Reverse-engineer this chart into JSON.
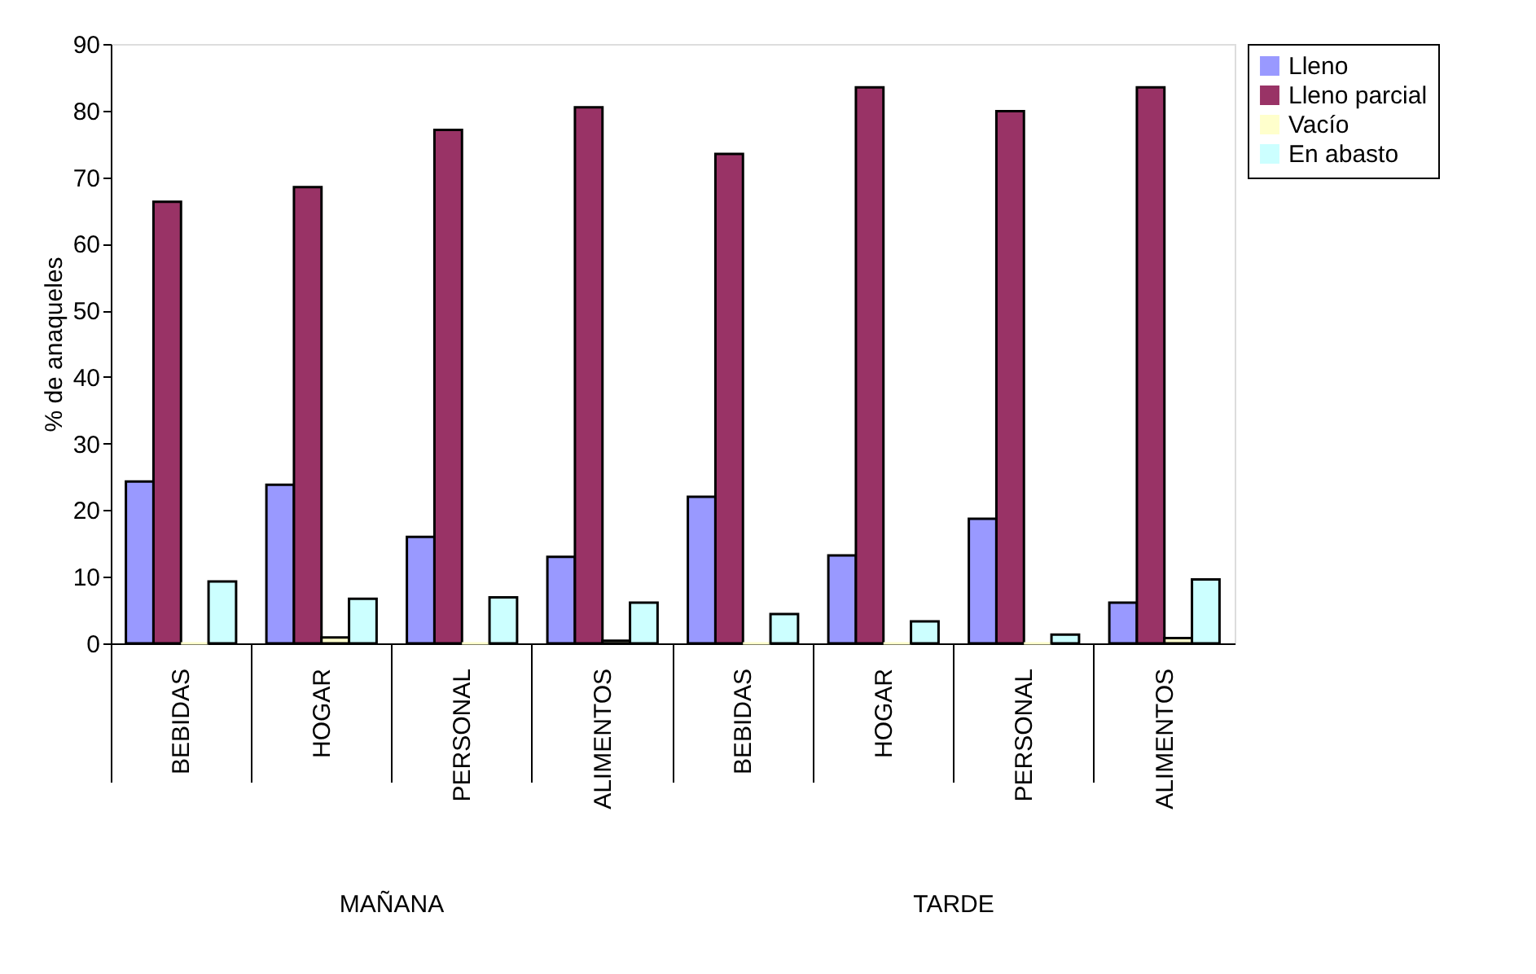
{
  "chart_data": {
    "type": "bar",
    "ylabel": "% de anaqueles",
    "categories": [
      "BEBIDAS",
      "HOGAR",
      "PERSONAL",
      "ALIMENTOS",
      "BEBIDAS",
      "HOGAR",
      "PERSONAL",
      "ALIMENTOS"
    ],
    "series": [
      {
        "name": "Lleno",
        "color": "#9999ff",
        "values": [
          24.3,
          23.8,
          16,
          13,
          22,
          13.2,
          18.7,
          6.1
        ]
      },
      {
        "name": "Lleno parcial",
        "color": "#993366",
        "values": [
          66.3,
          68.5,
          77.1,
          80.5,
          73.5,
          83.5,
          79.9,
          83.5
        ]
      },
      {
        "name": "Vacío",
        "color": "#ffffcc",
        "values": [
          0,
          0.9,
          0,
          0.4,
          0,
          0,
          0,
          0.8
        ]
      },
      {
        "name": "En abasto",
        "color": "#ccffff",
        "values": [
          9.3,
          6.7,
          6.9,
          6.1,
          4.4,
          3.3,
          1.3,
          9.6
        ]
      }
    ],
    "annotations": [
      "MAÑANA",
      "TARDE"
    ],
    "ylim": [
      0,
      90
    ],
    "yticks": [
      0,
      10,
      20,
      30,
      40,
      50,
      60,
      70,
      80,
      90
    ],
    "grid": false,
    "legend": "top right"
  }
}
